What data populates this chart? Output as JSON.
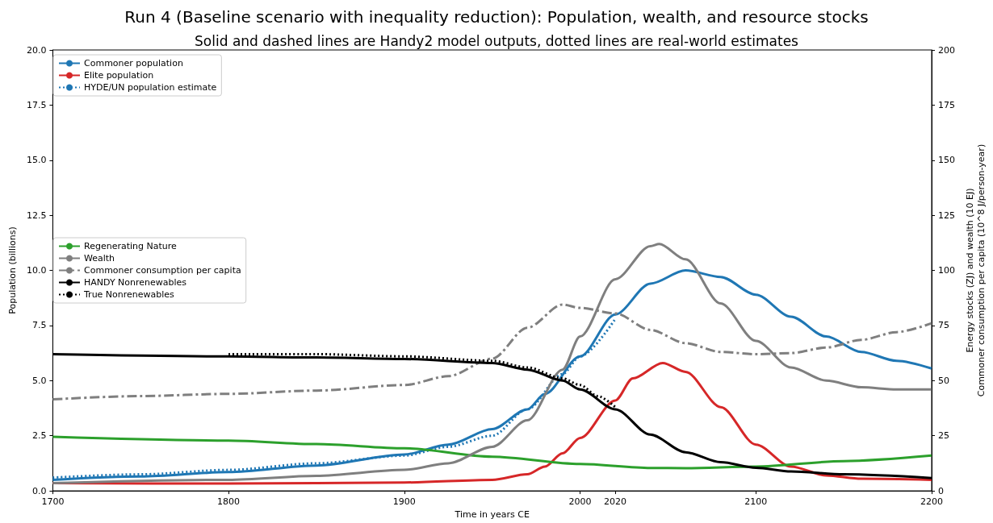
{
  "chart_data": {
    "type": "line",
    "title": "Run 4 (Baseline scenario with inequality reduction): Population, wealth, and resource stocks",
    "subtitle": "Solid and dashed lines are Handy2 model outputs, dotted lines are real-world estimates",
    "xlabel": "Time in years CE",
    "ylabel": "Population (billions)",
    "y2label": "Energy stocks (ZJ) and wealth (10 EJ)\nCommoner consumption per capita (10^8 J/person-year)",
    "xlim": [
      1700,
      2200
    ],
    "xticks": [
      1700,
      1800,
      1900,
      2000,
      2020,
      2100,
      2200
    ],
    "ylim": [
      0,
      20
    ],
    "yticks": [
      {
        "value": 0,
        "label": "0.0"
      },
      {
        "value": 2.5,
        "label": "2.5"
      },
      {
        "value": 5,
        "label": "5.0"
      },
      {
        "value": 7.5,
        "label": "7.5"
      },
      {
        "value": 10,
        "label": "10.0"
      },
      {
        "value": 12.5,
        "label": "12.5"
      },
      {
        "value": 15,
        "label": "15.0"
      },
      {
        "value": 17.5,
        "label": "17.5"
      },
      {
        "value": 20,
        "label": "20.0"
      }
    ],
    "y2lim": [
      0,
      200
    ],
    "y2ticks": [
      0,
      25,
      50,
      75,
      100,
      125,
      150,
      175,
      200
    ],
    "grid": false,
    "legend": "top left",
    "marker": "none",
    "series": [
      {
        "name": "Commoner population",
        "color": "#1f77b4",
        "line_style": "solid",
        "x": [
          1700,
          1750,
          1800,
          1850,
          1900,
          1925,
          1950,
          1970,
          1980,
          2000,
          2020,
          2040,
          2060,
          2080,
          2100,
          2120,
          2140,
          2160,
          2180,
          2200
        ],
        "values": [
          0.5,
          0.65,
          0.85,
          1.15,
          1.65,
          2.1,
          2.8,
          3.7,
          4.4,
          6.1,
          8.0,
          9.4,
          10.0,
          9.7,
          8.9,
          7.9,
          7.0,
          6.3,
          5.9,
          5.55
        ]
      },
      {
        "name": "Elite population",
        "color": "#d62728",
        "line_style": "solid",
        "x": [
          1700,
          1800,
          1900,
          1950,
          1970,
          1980,
          1990,
          2000,
          2020,
          2030,
          2047,
          2060,
          2080,
          2100,
          2120,
          2140,
          2160,
          2200
        ],
        "values": [
          0.35,
          0.33,
          0.38,
          0.5,
          0.75,
          1.1,
          1.7,
          2.4,
          4.1,
          5.1,
          5.8,
          5.4,
          3.8,
          2.1,
          1.1,
          0.7,
          0.55,
          0.5
        ]
      },
      {
        "name": "HYDE/UN population estimate",
        "color": "#1f77b4",
        "line_style": "dotted",
        "x": [
          1700,
          1750,
          1800,
          1850,
          1900,
          1925,
          1950,
          1970,
          1990,
          2000,
          2020
        ],
        "values": [
          0.6,
          0.75,
          0.95,
          1.25,
          1.6,
          2.0,
          2.5,
          3.7,
          5.3,
          6.1,
          7.8
        ]
      },
      {
        "name": "Regenerating Nature",
        "color": "#2ca02c",
        "line_style": "solid",
        "axis": "y2",
        "x": [
          1700,
          1800,
          1850,
          1900,
          1950,
          2000,
          2040,
          2060,
          2100,
          2150,
          2200
        ],
        "values": [
          24.5,
          22.8,
          21.2,
          19.3,
          15.5,
          12.2,
          10.4,
          10.3,
          11.0,
          13.5,
          16.0
        ]
      },
      {
        "name": "Wealth",
        "color": "#7f7f7f",
        "line_style": "solid",
        "axis": "y2",
        "x": [
          1700,
          1800,
          1850,
          1900,
          1925,
          1950,
          1970,
          1990,
          2000,
          2020,
          2040,
          2045,
          2060,
          2080,
          2100,
          2120,
          2140,
          2160,
          2180,
          2200
        ],
        "values": [
          3.5,
          5,
          6.8,
          9.5,
          12.5,
          20,
          32,
          55,
          70,
          96,
          111,
          112,
          105,
          85,
          68,
          56,
          50,
          47,
          46,
          46
        ]
      },
      {
        "name": "Commoner consumption per capita",
        "color": "#7f7f7f",
        "line_style": "dashdot",
        "axis": "y2",
        "x": [
          1700,
          1750,
          1800,
          1850,
          1900,
          1925,
          1950,
          1970,
          1990,
          2000,
          2020,
          2040,
          2060,
          2080,
          2100,
          2120,
          2140,
          2160,
          2180,
          2200
        ],
        "values": [
          41.5,
          43,
          44,
          45.5,
          48,
          52,
          60,
          74,
          84.5,
          83,
          80.5,
          73,
          67,
          63,
          62,
          62.5,
          65,
          68.5,
          72,
          76
        ]
      },
      {
        "name": "HANDY Nonrenewables",
        "color": "#000000",
        "line_style": "solid",
        "axis": "y2",
        "x": [
          1700,
          1800,
          1850,
          1900,
          1950,
          1970,
          1990,
          2000,
          2020,
          2040,
          2060,
          2080,
          2100,
          2120,
          2150,
          2200
        ],
        "values": [
          62,
          61,
          60.5,
          59.8,
          58,
          55,
          50,
          46,
          37,
          25.5,
          17.5,
          13,
          10.5,
          8.8,
          7.5,
          5.8
        ]
      },
      {
        "name": "True Nonrenewables",
        "color": "#000000",
        "line_style": "dotted",
        "axis": "y2",
        "x": [
          1800,
          1850,
          1900,
          1950,
          1970,
          1990,
          2000,
          2010,
          2020
        ],
        "values": [
          62,
          62,
          61,
          59,
          56,
          51,
          48,
          43,
          38
        ]
      }
    ]
  }
}
